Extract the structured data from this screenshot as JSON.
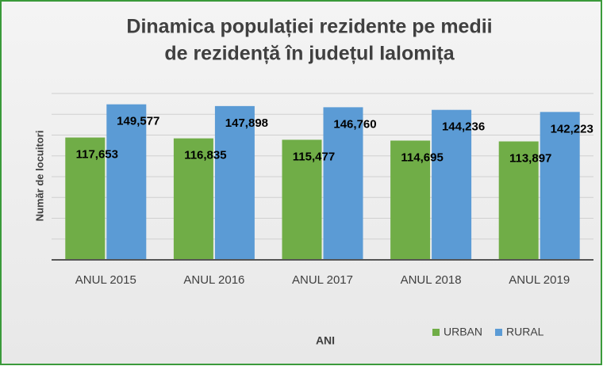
{
  "chart_data": {
    "type": "bar",
    "title": [
      "Dinamica populației rezidente pe medii",
      "de rezidență în județul Ialomița"
    ],
    "x_label": "ANI",
    "y_label": "Număr de locuitori",
    "categories": [
      "ANUL 2015",
      "ANUL 2016",
      "ANUL 2017",
      "ANUL 2018",
      "ANUL 2019"
    ],
    "series": [
      {
        "name": "URBAN",
        "color": "#70ad47",
        "values": [
          117653,
          116835,
          115477,
          114695,
          113897
        ],
        "value_labels": [
          "117,653",
          "116,835",
          "115,477",
          "114,695",
          "113,897"
        ]
      },
      {
        "name": "RURAL",
        "color": "#5b9bd5",
        "values": [
          149577,
          147898,
          146760,
          144236,
          142223
        ],
        "value_labels": [
          "149,577",
          "147,898",
          "146,760",
          "144,236",
          "142,223"
        ]
      }
    ],
    "ylim": [
      0,
      160000
    ],
    "yticks": [
      0,
      20000,
      40000,
      60000,
      80000,
      100000,
      120000,
      140000,
      160000
    ],
    "grid": true,
    "legend": "bottom-right"
  }
}
